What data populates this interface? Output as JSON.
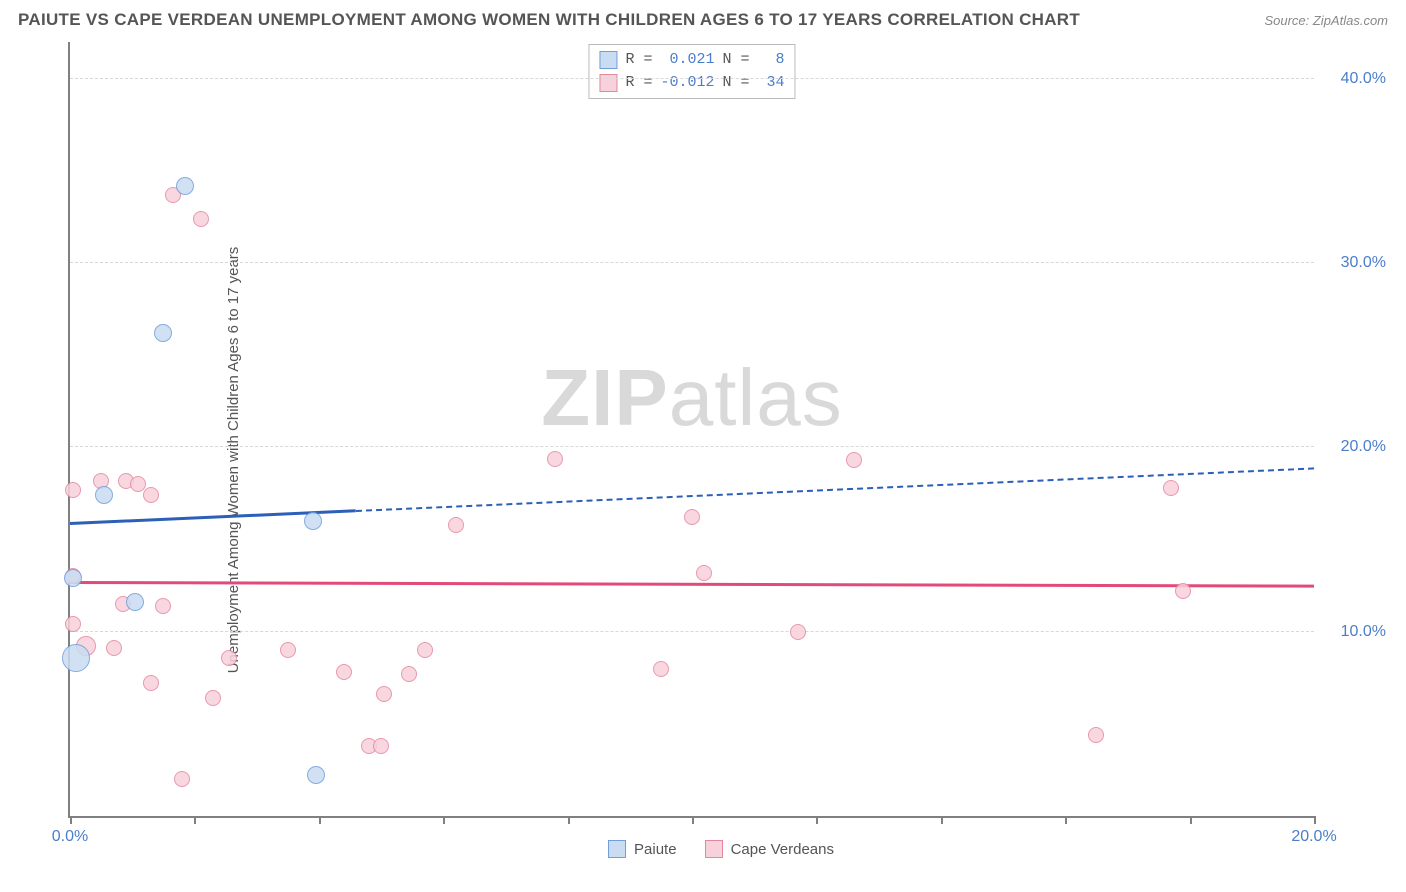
{
  "header": {
    "title": "PAIUTE VS CAPE VERDEAN UNEMPLOYMENT AMONG WOMEN WITH CHILDREN AGES 6 TO 17 YEARS CORRELATION CHART",
    "source": "Source: ZipAtlas.com"
  },
  "chart": {
    "ylabel": "Unemployment Among Women with Children Ages 6 to 17 years",
    "watermark_a": "ZIP",
    "watermark_b": "atlas",
    "xlim": [
      0,
      20
    ],
    "ylim": [
      0,
      42
    ],
    "y_ticks": [
      10,
      20,
      30,
      40
    ],
    "y_tick_labels": [
      "10.0%",
      "20.0%",
      "30.0%",
      "40.0%"
    ],
    "x_ticks": [
      0,
      2,
      4,
      6,
      8,
      10,
      12,
      14,
      16,
      18,
      20
    ],
    "x_tick_labels": {
      "0": "0.0%",
      "20": "20.0%"
    },
    "background_color": "#ffffff",
    "grid_color": "#d8d8d8",
    "series": {
      "paiute": {
        "label": "Paiute",
        "fill": "#c9dcf2",
        "stroke": "#6f9ed9",
        "R": "0.021",
        "N": "8",
        "trend": {
          "y_start": 15.8,
          "y_end": 18.8,
          "solid_until_x": 4.6
        },
        "points": [
          {
            "x": 0.05,
            "y": 12.9,
            "r": 9
          },
          {
            "x": 0.1,
            "y": 8.6,
            "r": 14
          },
          {
            "x": 0.55,
            "y": 17.4,
            "r": 9
          },
          {
            "x": 1.05,
            "y": 11.6,
            "r": 9
          },
          {
            "x": 1.5,
            "y": 26.2,
            "r": 9
          },
          {
            "x": 1.85,
            "y": 34.2,
            "r": 9
          },
          {
            "x": 3.9,
            "y": 16.0,
            "r": 9
          },
          {
            "x": 3.95,
            "y": 2.2,
            "r": 9
          }
        ]
      },
      "cape": {
        "label": "Cape Verdeans",
        "fill": "#f7d1dc",
        "stroke": "#e4879f",
        "R": "-0.012",
        "N": "34",
        "trend": {
          "y_start": 12.6,
          "y_end": 12.4,
          "solid_until_x": 20
        },
        "points": [
          {
            "x": 0.5,
            "y": 18.2,
            "r": 8
          },
          {
            "x": 0.05,
            "y": 17.7,
            "r": 8
          },
          {
            "x": 0.9,
            "y": 18.2,
            "r": 8
          },
          {
            "x": 1.1,
            "y": 18.0,
            "r": 8
          },
          {
            "x": 1.3,
            "y": 17.4,
            "r": 8
          },
          {
            "x": 0.05,
            "y": 13.0,
            "r": 8
          },
          {
            "x": 0.85,
            "y": 11.5,
            "r": 8
          },
          {
            "x": 1.5,
            "y": 11.4,
            "r": 8
          },
          {
            "x": 0.05,
            "y": 10.4,
            "r": 8
          },
          {
            "x": 0.25,
            "y": 9.2,
            "r": 10
          },
          {
            "x": 0.7,
            "y": 9.1,
            "r": 8
          },
          {
            "x": 2.55,
            "y": 8.6,
            "r": 8
          },
          {
            "x": 1.3,
            "y": 7.2,
            "r": 8
          },
          {
            "x": 2.3,
            "y": 6.4,
            "r": 8
          },
          {
            "x": 4.4,
            "y": 7.8,
            "r": 8
          },
          {
            "x": 4.8,
            "y": 3.8,
            "r": 8
          },
          {
            "x": 5.0,
            "y": 3.8,
            "r": 8
          },
          {
            "x": 5.45,
            "y": 7.7,
            "r": 8
          },
          {
            "x": 5.7,
            "y": 9.0,
            "r": 8
          },
          {
            "x": 5.05,
            "y": 6.6,
            "r": 8
          },
          {
            "x": 1.8,
            "y": 2.0,
            "r": 8
          },
          {
            "x": 1.65,
            "y": 33.7,
            "r": 8
          },
          {
            "x": 2.1,
            "y": 32.4,
            "r": 8
          },
          {
            "x": 6.2,
            "y": 15.8,
            "r": 8
          },
          {
            "x": 7.8,
            "y": 19.4,
            "r": 8
          },
          {
            "x": 9.5,
            "y": 8.0,
            "r": 8
          },
          {
            "x": 10.0,
            "y": 16.2,
            "r": 8
          },
          {
            "x": 10.2,
            "y": 13.2,
            "r": 8
          },
          {
            "x": 11.7,
            "y": 10.0,
            "r": 8
          },
          {
            "x": 12.6,
            "y": 19.3,
            "r": 8
          },
          {
            "x": 16.5,
            "y": 4.4,
            "r": 8
          },
          {
            "x": 17.7,
            "y": 17.8,
            "r": 8
          },
          {
            "x": 17.9,
            "y": 12.2,
            "r": 8
          },
          {
            "x": 3.5,
            "y": 9.0,
            "r": 8
          }
        ]
      }
    },
    "legend_top": {
      "r_label": "R =",
      "n_label": "N ="
    }
  }
}
